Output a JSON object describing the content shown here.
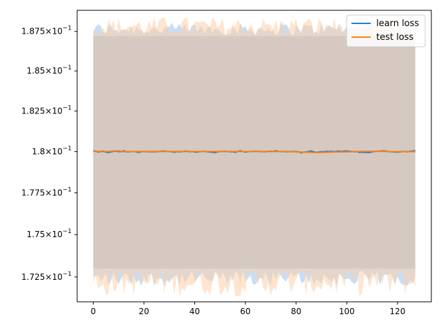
{
  "chart_data": {
    "type": "line",
    "title": "",
    "xlabel": "",
    "ylabel": "",
    "xlim": [
      -6.35,
      133.35
    ],
    "ylim": [
      1.7105,
      1.8885
    ],
    "xticks": [
      0,
      20,
      40,
      60,
      80,
      100,
      120
    ],
    "xtick_labels": [
      "0",
      "20",
      "40",
      "60",
      "80",
      "100",
      "120"
    ],
    "yticks": [
      1.725,
      1.75,
      1.775,
      1.8,
      1.825,
      1.85,
      1.875
    ],
    "ytick_labels": [
      {
        "mantissa": "1.725",
        "exponent": "−1"
      },
      {
        "mantissa": "1.75",
        "exponent": "−1"
      },
      {
        "mantissa": "1.775",
        "exponent": "−1"
      },
      {
        "mantissa": "1.8",
        "exponent": "−1"
      },
      {
        "mantissa": "1.825",
        "exponent": "−1"
      },
      {
        "mantissa": "1.85",
        "exponent": "−1"
      },
      {
        "mantissa": "1.875",
        "exponent": "−1"
      }
    ],
    "y_scale": "log",
    "grid": false,
    "legend_position": "top-right",
    "series": [
      {
        "name": "learn loss",
        "color": "#1f77b4",
        "line_color": "#1a7fe0",
        "band_color": "#a8ccf2",
        "mean_knots": [
          [
            0,
            1.8004
          ],
          [
            2,
            1.7998
          ],
          [
            4,
            1.8002
          ],
          [
            6,
            1.7993
          ],
          [
            8,
            1.8003
          ],
          [
            10,
            1.7999
          ],
          [
            12,
            1.8003
          ],
          [
            14,
            1.7997
          ],
          [
            16,
            1.8001
          ],
          [
            18,
            1.7996
          ],
          [
            20,
            1.8002
          ],
          [
            24,
            1.7998
          ],
          [
            28,
            1.8002
          ],
          [
            32,
            1.7997
          ],
          [
            36,
            1.8003
          ],
          [
            40,
            1.7998
          ],
          [
            44,
            1.8001
          ],
          [
            48,
            1.7996
          ],
          [
            52,
            1.8003
          ],
          [
            56,
            1.7997
          ],
          [
            58,
            1.8006
          ],
          [
            60,
            1.7998
          ],
          [
            64,
            1.8002
          ],
          [
            68,
            1.7999
          ],
          [
            72,
            1.8003
          ],
          [
            76,
            1.7998
          ],
          [
            80,
            1.8001
          ],
          [
            82,
            1.7994
          ],
          [
            86,
            1.8003
          ],
          [
            88,
            1.7996
          ],
          [
            92,
            1.8002
          ],
          [
            96,
            1.8001
          ],
          [
            100,
            1.8002
          ],
          [
            104,
            1.7999
          ],
          [
            108,
            1.7993
          ],
          [
            112,
            1.8004
          ],
          [
            116,
            1.8002
          ],
          [
            120,
            1.7997
          ],
          [
            122,
            1.8003
          ],
          [
            124,
            1.7999
          ],
          [
            126,
            1.8005
          ],
          [
            127,
            1.8006
          ]
        ],
        "upper_band_range": [
          1.8725,
          1.8805
        ],
        "lower_band_range": [
          1.7195,
          1.7285
        ]
      },
      {
        "name": "test loss",
        "color": "#ff7f0e",
        "line_color": "#ff7f0e",
        "band_color": "#ffd0a8",
        "mean_knots": [
          [
            0,
            1.8002
          ],
          [
            3,
            1.8
          ],
          [
            6,
            1.8001
          ],
          [
            8,
            1.8004
          ],
          [
            10,
            1.8005
          ],
          [
            12,
            1.8
          ],
          [
            20,
            1.8001
          ],
          [
            40,
            1.8001
          ],
          [
            60,
            1.8001
          ],
          [
            79,
            1.8001
          ],
          [
            80,
            1.7998
          ],
          [
            84,
            1.7997
          ],
          [
            88,
            1.7994
          ],
          [
            92,
            1.7996
          ],
          [
            96,
            1.7998
          ],
          [
            100,
            1.7998
          ],
          [
            104,
            1.8001
          ],
          [
            112,
            1.8002
          ],
          [
            116,
            1.8001
          ],
          [
            120,
            1.8
          ],
          [
            124,
            1.8001
          ],
          [
            127,
            1.7999
          ]
        ],
        "upper_band_range": [
          1.872,
          1.8845
        ],
        "lower_band_range": [
          1.7135,
          1.73
        ]
      }
    ]
  }
}
